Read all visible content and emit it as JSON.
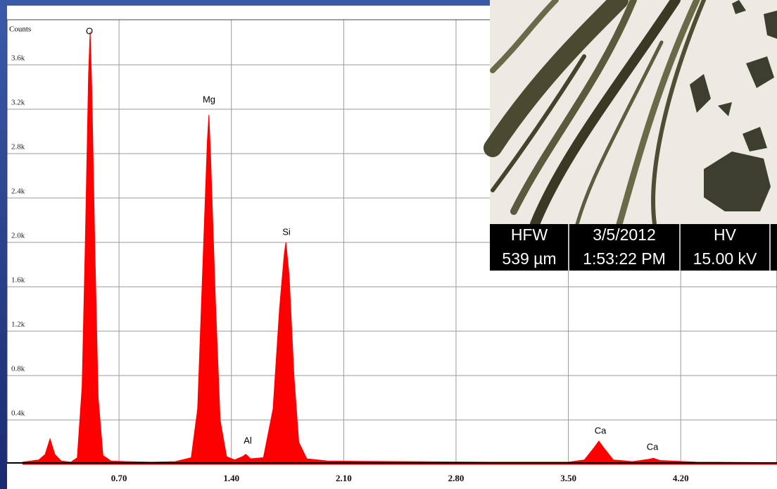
{
  "chart_data": {
    "type": "area",
    "y_label": "Counts",
    "x": [
      0.1,
      0.2,
      0.24,
      0.27,
      0.3,
      0.34,
      0.4,
      0.44,
      0.47,
      0.49,
      0.51,
      0.52,
      0.53,
      0.55,
      0.57,
      0.6,
      0.65,
      0.75,
      0.9,
      1.05,
      1.15,
      1.19,
      1.22,
      1.25,
      1.26,
      1.27,
      1.3,
      1.33,
      1.37,
      1.42,
      1.47,
      1.49,
      1.52,
      1.6,
      1.66,
      1.7,
      1.73,
      1.74,
      1.76,
      1.79,
      1.82,
      1.87,
      2.0,
      2.5,
      3.0,
      3.5,
      3.6,
      3.66,
      3.69,
      3.72,
      3.78,
      3.9,
      4.0,
      4.03,
      4.07,
      4.3,
      4.8
    ],
    "values": [
      20,
      40,
      90,
      230,
      90,
      30,
      20,
      60,
      700,
      2000,
      3500,
      3900,
      3400,
      1900,
      600,
      80,
      30,
      25,
      20,
      25,
      60,
      500,
      1700,
      2900,
      3150,
      2800,
      1500,
      400,
      70,
      40,
      70,
      90,
      50,
      60,
      500,
      1400,
      1900,
      2000,
      1700,
      800,
      200,
      50,
      30,
      25,
      20,
      20,
      40,
      150,
      210,
      150,
      40,
      25,
      45,
      55,
      35,
      20,
      15
    ],
    "color": "#ff0000",
    "xlim": [
      0,
      4.8
    ],
    "ylim": [
      0,
      4000
    ],
    "xticks": [
      {
        "value": 0.7,
        "label": "0.70"
      },
      {
        "value": 1.4,
        "label": "1.40"
      },
      {
        "value": 2.1,
        "label": "2.10"
      },
      {
        "value": 2.8,
        "label": "2.80"
      },
      {
        "value": 3.5,
        "label": "3.50"
      },
      {
        "value": 4.2,
        "label": "4.20"
      }
    ],
    "yticks": [
      {
        "value": 400,
        "label": "0.4k"
      },
      {
        "value": 800,
        "label": "0.8k"
      },
      {
        "value": 1200,
        "label": "1.2k"
      },
      {
        "value": 1600,
        "label": "1.6k"
      },
      {
        "value": 2000,
        "label": "2.0k"
      },
      {
        "value": 2400,
        "label": "2.4k"
      },
      {
        "value": 2800,
        "label": "2.8k"
      },
      {
        "value": 3200,
        "label": "3.2k"
      },
      {
        "value": 3600,
        "label": "3.6k"
      }
    ],
    "grid": true,
    "annotations": [
      "O",
      "Mg",
      "Si",
      "Al",
      "Ca",
      "Ca"
    ]
  },
  "inset": {
    "labels": [
      [
        "HFW",
        "539 µm"
      ],
      [
        "3/5/2012",
        "1:53:22 PM"
      ],
      [
        "HV",
        "15.00 kV"
      ]
    ]
  }
}
